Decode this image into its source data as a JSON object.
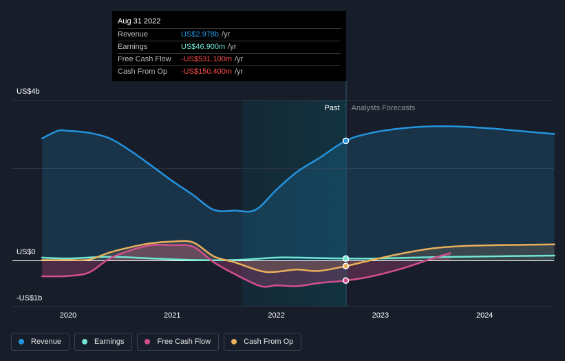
{
  "tooltip": {
    "date": "Aug 31 2022",
    "rows": [
      {
        "label": "Revenue",
        "value": "US$2.978b",
        "unit": "/yr",
        "color": "#2394df"
      },
      {
        "label": "Earnings",
        "value": "US$46.900m",
        "unit": "/yr",
        "color": "#71e7d6"
      },
      {
        "label": "Free Cash Flow",
        "value": "-US$531.100m",
        "unit": "/yr",
        "color": "#ff4d4d"
      },
      {
        "label": "Cash From Op",
        "value": "-US$150.400m",
        "unit": "/yr",
        "color": "#ff4d4d"
      }
    ]
  },
  "chart_data": {
    "type": "line",
    "y_tick_labels": [
      "US$4b",
      "US$0",
      "-US$1b"
    ],
    "x_tick_labels": [
      "2020",
      "2021",
      "2022",
      "2023",
      "2024"
    ],
    "ylim": [
      -1.0,
      4.0
    ],
    "xlim": [
      2019.55,
      2024.67
    ],
    "past_label": "Past",
    "forecast_label": "Analysts Forecasts",
    "divider_x": 2022.667,
    "highlight_start_x": 2021.67,
    "series": [
      {
        "name": "Revenue",
        "color": "#2394df",
        "fill": true,
        "x": [
          2019.75,
          2019.9,
          2020.0,
          2020.2,
          2020.4,
          2020.6,
          2020.8,
          2021.0,
          2021.2,
          2021.4,
          2021.6,
          2021.8,
          2022.0,
          2022.2,
          2022.4,
          2022.667,
          2022.9,
          2023.2,
          2023.5,
          2023.8,
          2024.1,
          2024.4,
          2024.67
        ],
        "y": [
          3.04,
          3.23,
          3.23,
          3.18,
          3.04,
          2.73,
          2.36,
          1.98,
          1.63,
          1.26,
          1.24,
          1.26,
          1.76,
          2.21,
          2.53,
          2.98,
          3.17,
          3.29,
          3.34,
          3.33,
          3.28,
          3.21,
          3.15
        ]
      },
      {
        "name": "Earnings",
        "color": "#71e7d6",
        "fill": false,
        "x": [
          2019.75,
          2020.0,
          2020.4,
          2020.8,
          2021.2,
          2021.6,
          2022.0,
          2022.2,
          2022.667,
          2023.0,
          2023.5,
          2024.0,
          2024.67
        ],
        "y": [
          0.07,
          0.05,
          0.09,
          0.05,
          0.01,
          0.01,
          0.07,
          0.07,
          0.047,
          0.05,
          0.08,
          0.1,
          0.12
        ]
      },
      {
        "name": "Free Cash Flow",
        "color": "#d24f8f",
        "fill": true,
        "x": [
          2019.75,
          2020.0,
          2020.2,
          2020.4,
          2020.6,
          2020.8,
          2021.0,
          2021.2,
          2021.4,
          2021.6,
          2021.85,
          2022.0,
          2022.2,
          2022.4,
          2022.667,
          2022.9,
          2023.2,
          2023.5,
          2023.67
        ],
        "y": [
          -0.42,
          -0.41,
          -0.32,
          0.05,
          0.25,
          0.38,
          0.38,
          0.34,
          -0.05,
          -0.36,
          -0.68,
          -0.66,
          -0.68,
          -0.6,
          -0.531,
          -0.43,
          -0.22,
          0.05,
          0.18
        ]
      },
      {
        "name": "Cash From Op",
        "color": "#e9b05b",
        "fill": true,
        "x": [
          2019.75,
          2020.0,
          2020.2,
          2020.4,
          2020.6,
          2020.8,
          2021.0,
          2021.2,
          2021.4,
          2021.6,
          2021.85,
          2022.0,
          2022.2,
          2022.4,
          2022.667,
          2022.9,
          2023.2,
          2023.5,
          2023.8,
          2024.1,
          2024.4,
          2024.67
        ],
        "y": [
          0.01,
          0.01,
          0.02,
          0.2,
          0.33,
          0.43,
          0.47,
          0.45,
          0.1,
          -0.05,
          -0.28,
          -0.3,
          -0.24,
          -0.28,
          -0.15,
          0.0,
          0.17,
          0.3,
          0.36,
          0.38,
          0.39,
          0.4
        ]
      }
    ],
    "markers_at_x": 2022.667,
    "legend": [
      "Revenue",
      "Earnings",
      "Free Cash Flow",
      "Cash From Op"
    ],
    "legend_position": "bottom-left",
    "grid": true
  },
  "colors": {
    "background": "#181e29",
    "grid": "#2c3442",
    "axis": "#ffffff",
    "past_region": "#12323f"
  }
}
